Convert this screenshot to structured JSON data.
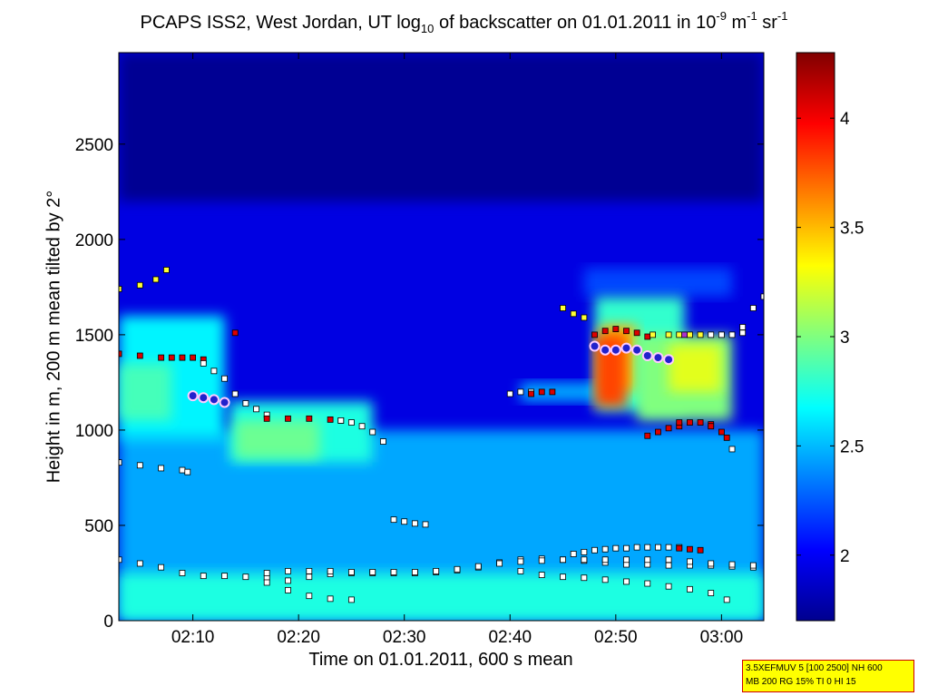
{
  "chart_data": {
    "type": "heatmap",
    "title": {
      "prefix": "PCAPS ISS2, West Jordan, UT log",
      "log_base": "10",
      "middle": " of backscatter on 01.01.2011 in 10",
      "exp1": "-9",
      "unit1": " m",
      "exp2": "-1",
      "unit2": " sr",
      "exp3": "-1"
    },
    "xlabel": "Time on 01.01.2011, 600 s mean",
    "ylabel": "Height in m, 200 m mean tilted by 2°",
    "x_range_minutes": [
      123,
      184
    ],
    "y_range_m": [
      0,
      2980
    ],
    "x_ticks": [
      {
        "label": "02:10",
        "minute": 130
      },
      {
        "label": "02:20",
        "minute": 140
      },
      {
        "label": "02:30",
        "minute": 150
      },
      {
        "label": "02:40",
        "minute": 160
      },
      {
        "label": "02:50",
        "minute": 170
      },
      {
        "label": "03:00",
        "minute": 180
      }
    ],
    "y_ticks": [
      "0",
      "500",
      "1000",
      "1500",
      "2000",
      "2500"
    ],
    "y_tick_values": [
      0,
      500,
      1000,
      1500,
      2000,
      2500
    ],
    "colorbar": {
      "range": [
        1.7,
        4.3
      ],
      "ticks": [
        "2",
        "2.5",
        "3",
        "3.5",
        "4"
      ],
      "tick_values": [
        2,
        2.5,
        3,
        3.5,
        4
      ],
      "colormap": "jet"
    },
    "layers": [
      {
        "x": [
          123,
          184
        ],
        "y": [
          0,
          2980
        ],
        "value": 1.95
      },
      {
        "x": [
          123,
          184
        ],
        "y": [
          0,
          1000
        ],
        "value": 2.45
      },
      {
        "x": [
          123,
          184
        ],
        "y": [
          0,
          250
        ],
        "value": 2.75
      },
      {
        "x": [
          123,
          133
        ],
        "y": [
          950,
          1600
        ],
        "value": 2.65
      },
      {
        "x": [
          123,
          128
        ],
        "y": [
          1050,
          1350
        ],
        "value": 2.85
      },
      {
        "x": [
          133.5,
          147
        ],
        "y": [
          830,
          1150
        ],
        "value": 2.75
      },
      {
        "x": [
          134,
          142
        ],
        "y": [
          850,
          1050
        ],
        "value": 2.95
      },
      {
        "x": [
          161,
          170
        ],
        "y": [
          1150,
          1250
        ],
        "value": 2.45
      },
      {
        "x": [
          167,
          181
        ],
        "y": [
          1700,
          1850
        ],
        "value": 2.2
      },
      {
        "x": [
          168,
          176.5
        ],
        "y": [
          1100,
          1700
        ],
        "value": 2.8
      },
      {
        "x": [
          168.5,
          172
        ],
        "y": [
          1200,
          1550
        ],
        "value": 3.5
      },
      {
        "x": [
          168,
          171
        ],
        "y": [
          1120,
          1500
        ],
        "value": 3.8
      },
      {
        "x": [
          172,
          181
        ],
        "y": [
          1050,
          1500
        ],
        "value": 3.0
      },
      {
        "x": [
          175,
          180
        ],
        "y": [
          1200,
          1450
        ],
        "value": 3.25
      },
      {
        "x": [
          123,
          184
        ],
        "y": [
          2200,
          2980
        ],
        "value": 1.75
      }
    ],
    "marker_series": [
      {
        "points": [
          [
            123,
            320
          ],
          [
            125,
            300
          ],
          [
            127,
            280
          ],
          [
            129,
            250
          ],
          [
            131,
            235
          ],
          [
            133,
            235
          ],
          [
            135,
            230
          ],
          [
            137,
            225
          ],
          [
            139,
            210
          ],
          [
            141,
            230
          ],
          [
            143,
            245
          ],
          [
            145,
            250
          ],
          [
            147,
            250
          ],
          [
            149,
            250
          ],
          [
            151,
            250
          ],
          [
            153,
            255
          ],
          [
            155,
            265
          ],
          [
            157,
            280
          ],
          [
            159,
            305
          ],
          [
            161,
            320
          ],
          [
            163,
            325
          ],
          [
            165,
            320
          ],
          [
            167,
            315
          ],
          [
            169,
            305
          ],
          [
            171,
            295
          ],
          [
            173,
            295
          ],
          [
            175,
            290
          ],
          [
            177,
            290
          ],
          [
            179,
            290
          ],
          [
            181,
            285
          ],
          [
            183,
            280
          ]
        ],
        "color": "#ffffff"
      },
      {
        "points": [
          [
            137,
            250
          ],
          [
            139,
            260
          ],
          [
            141,
            260
          ],
          [
            143,
            260
          ],
          [
            145,
            255
          ],
          [
            147,
            255
          ],
          [
            149,
            255
          ],
          [
            151,
            255
          ],
          [
            153,
            260
          ],
          [
            155,
            270
          ],
          [
            157,
            285
          ],
          [
            159,
            300
          ],
          [
            161,
            310
          ],
          [
            163,
            315
          ],
          [
            165,
            320
          ],
          [
            167,
            320
          ],
          [
            169,
            320
          ],
          [
            171,
            320
          ],
          [
            173,
            320
          ],
          [
            175,
            320
          ],
          [
            177,
            310
          ],
          [
            179,
            300
          ],
          [
            181,
            295
          ],
          [
            183,
            290
          ]
        ],
        "color": "#ffffff"
      },
      {
        "points": [
          [
            137,
            200
          ],
          [
            139,
            160
          ],
          [
            141,
            130
          ],
          [
            143,
            115
          ],
          [
            145,
            110
          ]
        ],
        "color": "#ffffff"
      },
      {
        "points": [
          [
            161,
            260
          ],
          [
            163,
            240
          ],
          [
            165,
            230
          ],
          [
            167,
            225
          ],
          [
            169,
            215
          ],
          [
            171,
            205
          ],
          [
            173,
            195
          ],
          [
            175,
            180
          ],
          [
            177,
            165
          ],
          [
            179,
            145
          ],
          [
            180.5,
            110
          ]
        ],
        "color": "#ffffff"
      },
      {
        "points": [
          [
            123,
            830
          ],
          [
            125,
            815
          ],
          [
            127,
            800
          ],
          [
            129,
            790
          ],
          [
            129.5,
            780
          ]
        ],
        "color": "#ffffff"
      },
      {
        "points": [
          [
            123,
            1740
          ],
          [
            125,
            1760
          ],
          [
            126.5,
            1790
          ],
          [
            127.5,
            1840
          ]
        ],
        "color": "#ffff33"
      },
      {
        "points": [
          [
            123,
            1400
          ],
          [
            125,
            1390
          ],
          [
            127,
            1380
          ],
          [
            128,
            1380
          ],
          [
            129,
            1380
          ],
          [
            130,
            1380
          ],
          [
            131,
            1370
          ]
        ],
        "color": "#dd0000"
      },
      {
        "points": [
          [
            131,
            1350
          ],
          [
            132,
            1310
          ],
          [
            133,
            1270
          ],
          [
            134,
            1190
          ],
          [
            135,
            1140
          ],
          [
            136,
            1110
          ],
          [
            137,
            1080
          ]
        ],
        "color": "#ffffff"
      },
      {
        "points": [
          [
            137,
            1060
          ],
          [
            139,
            1060
          ],
          [
            141,
            1060
          ],
          [
            143,
            1055
          ],
          [
            144,
            1050
          ]
        ],
        "color": "#dd0000"
      },
      {
        "points": [
          [
            144,
            1050
          ],
          [
            145,
            1040
          ],
          [
            146,
            1020
          ],
          [
            147,
            990
          ],
          [
            148,
            940
          ]
        ],
        "color": "#ffffff"
      },
      {
        "points": [
          [
            130,
            1180
          ],
          [
            131,
            1170
          ],
          [
            132,
            1160
          ],
          [
            133,
            1140
          ]
        ],
        "color": "#dd0000"
      },
      {
        "points": [
          [
            134,
            1510
          ]
        ],
        "color": "#dd0000"
      },
      {
        "points": [
          [
            149,
            530
          ],
          [
            150,
            520
          ],
          [
            151,
            510
          ],
          [
            152,
            505
          ]
        ],
        "color": "#ffffff"
      },
      {
        "points": [
          [
            160,
            1190
          ],
          [
            161,
            1200
          ],
          [
            162,
            1200
          ]
        ],
        "color": "#ffffff"
      },
      {
        "points": [
          [
            162,
            1190
          ],
          [
            163,
            1200
          ],
          [
            164,
            1200
          ]
        ],
        "color": "#dd0000"
      },
      {
        "points": [
          [
            165,
            1640
          ],
          [
            166,
            1610
          ],
          [
            167,
            1590
          ]
        ],
        "color": "#ffff33"
      },
      {
        "points": [
          [
            168,
            1500
          ],
          [
            169,
            1520
          ],
          [
            170,
            1530
          ],
          [
            171,
            1520
          ],
          [
            172,
            1510
          ],
          [
            173,
            1490
          ]
        ],
        "color": "#dd0000"
      },
      {
        "points": [
          [
            173.5,
            1500
          ],
          [
            175,
            1500
          ],
          [
            176,
            1500
          ],
          [
            177,
            1500
          ],
          [
            178,
            1500
          ]
        ],
        "color": "#ffff33"
      },
      {
        "points": [
          [
            176.5,
            1500
          ]
        ],
        "color": "#aa33cc"
      },
      {
        "points": [
          [
            179,
            1500
          ],
          [
            180,
            1500
          ],
          [
            181,
            1500
          ],
          [
            182,
            1510
          ]
        ],
        "color": "#ffffff"
      },
      {
        "points": [
          [
            182,
            1540
          ],
          [
            183,
            1640
          ],
          [
            184,
            1700
          ]
        ],
        "color": "#ffffff"
      },
      {
        "points": [
          [
            173,
            970
          ],
          [
            174,
            990
          ],
          [
            175,
            1010
          ],
          [
            176,
            1020
          ]
        ],
        "color": "#dd0000"
      },
      {
        "points": [
          [
            176,
            1040
          ],
          [
            177,
            1040
          ],
          [
            178,
            1040
          ],
          [
            179,
            1030
          ]
        ],
        "color": "#dd0000"
      },
      {
        "points": [
          [
            179,
            1020
          ],
          [
            180,
            990
          ],
          [
            180.5,
            960
          ]
        ],
        "color": "#dd0000"
      },
      {
        "points": [
          [
            181,
            900
          ]
        ],
        "color": "#ffffff"
      },
      {
        "points": [
          [
            166,
            350
          ],
          [
            167,
            360
          ],
          [
            168,
            370
          ],
          [
            169,
            375
          ],
          [
            170,
            380
          ],
          [
            171,
            380
          ],
          [
            172,
            385
          ],
          [
            173,
            385
          ],
          [
            174,
            385
          ],
          [
            175,
            385
          ],
          [
            176,
            385
          ]
        ],
        "color": "#ffffff"
      },
      {
        "points": [
          [
            176,
            380
          ],
          [
            177,
            375
          ],
          [
            178,
            370
          ]
        ],
        "color": "#dd0000"
      }
    ],
    "blue_blob_series": [
      {
        "points": [
          [
            130,
            1180
          ],
          [
            131,
            1170
          ],
          [
            132,
            1160
          ],
          [
            133,
            1145
          ]
        ]
      },
      {
        "points": [
          [
            168,
            1440
          ],
          [
            169,
            1420
          ],
          [
            170,
            1420
          ],
          [
            171,
            1430
          ],
          [
            172,
            1420
          ]
        ]
      },
      {
        "points": [
          [
            173,
            1390
          ],
          [
            174,
            1380
          ],
          [
            175,
            1370
          ]
        ]
      }
    ]
  },
  "info_box": {
    "line1": "3.5XEFMUV 5 [100 2500] NH 600",
    "line2": "MB 200 RG 15% TI 0 HI 15"
  }
}
